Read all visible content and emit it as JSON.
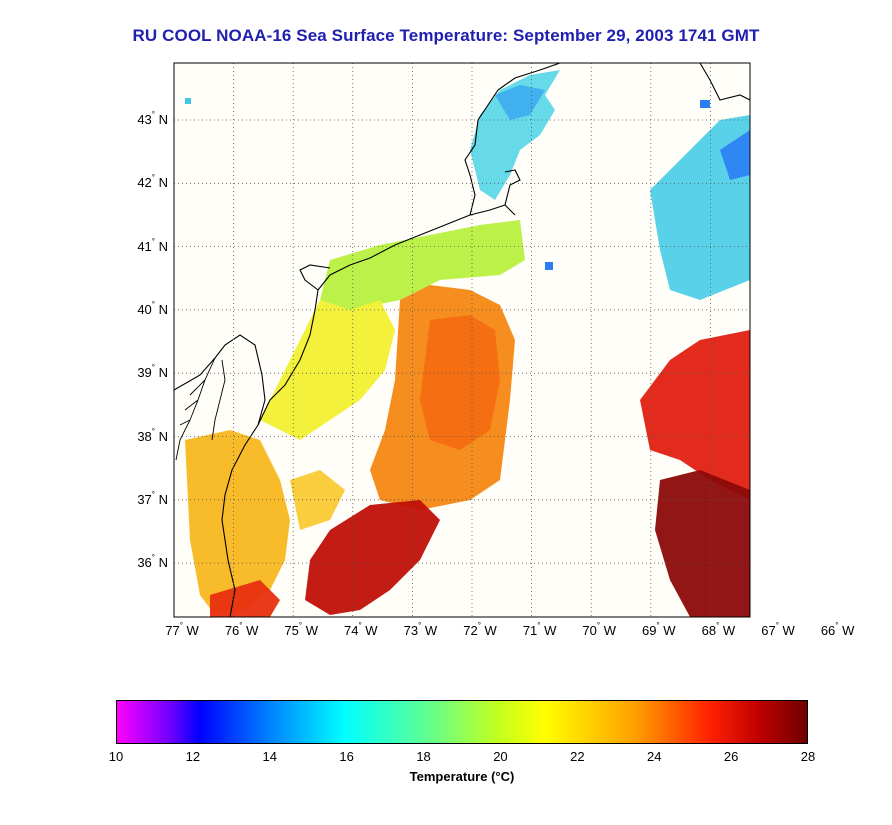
{
  "title": "RU COOL  NOAA-16  Sea Surface Temperature:  September 29, 2003 1741 GMT",
  "map": {
    "lat_labels": [
      {
        "deg": "43",
        "hemi": "N",
        "lat": 43
      },
      {
        "deg": "42",
        "hemi": "N",
        "lat": 42
      },
      {
        "deg": "41",
        "hemi": "N",
        "lat": 41
      },
      {
        "deg": "40",
        "hemi": "N",
        "lat": 40
      },
      {
        "deg": "39",
        "hemi": "N",
        "lat": 39
      },
      {
        "deg": "38",
        "hemi": "N",
        "lat": 38
      },
      {
        "deg": "37",
        "hemi": "N",
        "lat": 37
      },
      {
        "deg": "36",
        "hemi": "N",
        "lat": 36
      }
    ],
    "lon_labels": [
      {
        "deg": "77",
        "hemi": "W",
        "lon": -77
      },
      {
        "deg": "76",
        "hemi": "W",
        "lon": -76
      },
      {
        "deg": "75",
        "hemi": "W",
        "lon": -75
      },
      {
        "deg": "74",
        "hemi": "W",
        "lon": -74
      },
      {
        "deg": "73",
        "hemi": "W",
        "lon": -73
      },
      {
        "deg": "72",
        "hemi": "W",
        "lon": -72
      },
      {
        "deg": "71",
        "hemi": "W",
        "lon": -71
      },
      {
        "deg": "70",
        "hemi": "W",
        "lon": -70
      },
      {
        "deg": "69",
        "hemi": "W",
        "lon": -69
      },
      {
        "deg": "68",
        "hemi": "W",
        "lon": -68
      },
      {
        "deg": "67",
        "hemi": "W",
        "lon": -67
      },
      {
        "deg": "66",
        "hemi": "W",
        "lon": -66
      }
    ],
    "background_color": "#fffef8",
    "grid": true
  },
  "colorbar": {
    "ticks": [
      "10",
      "12",
      "14",
      "16",
      "18",
      "20",
      "22",
      "24",
      "26",
      "28"
    ],
    "label": "Temperature (°C)",
    "range": [
      10,
      28
    ],
    "colors": [
      "#ff00ff",
      "#0000ff",
      "#00ffff",
      "#ffff00",
      "#ff0000",
      "#800000"
    ]
  }
}
